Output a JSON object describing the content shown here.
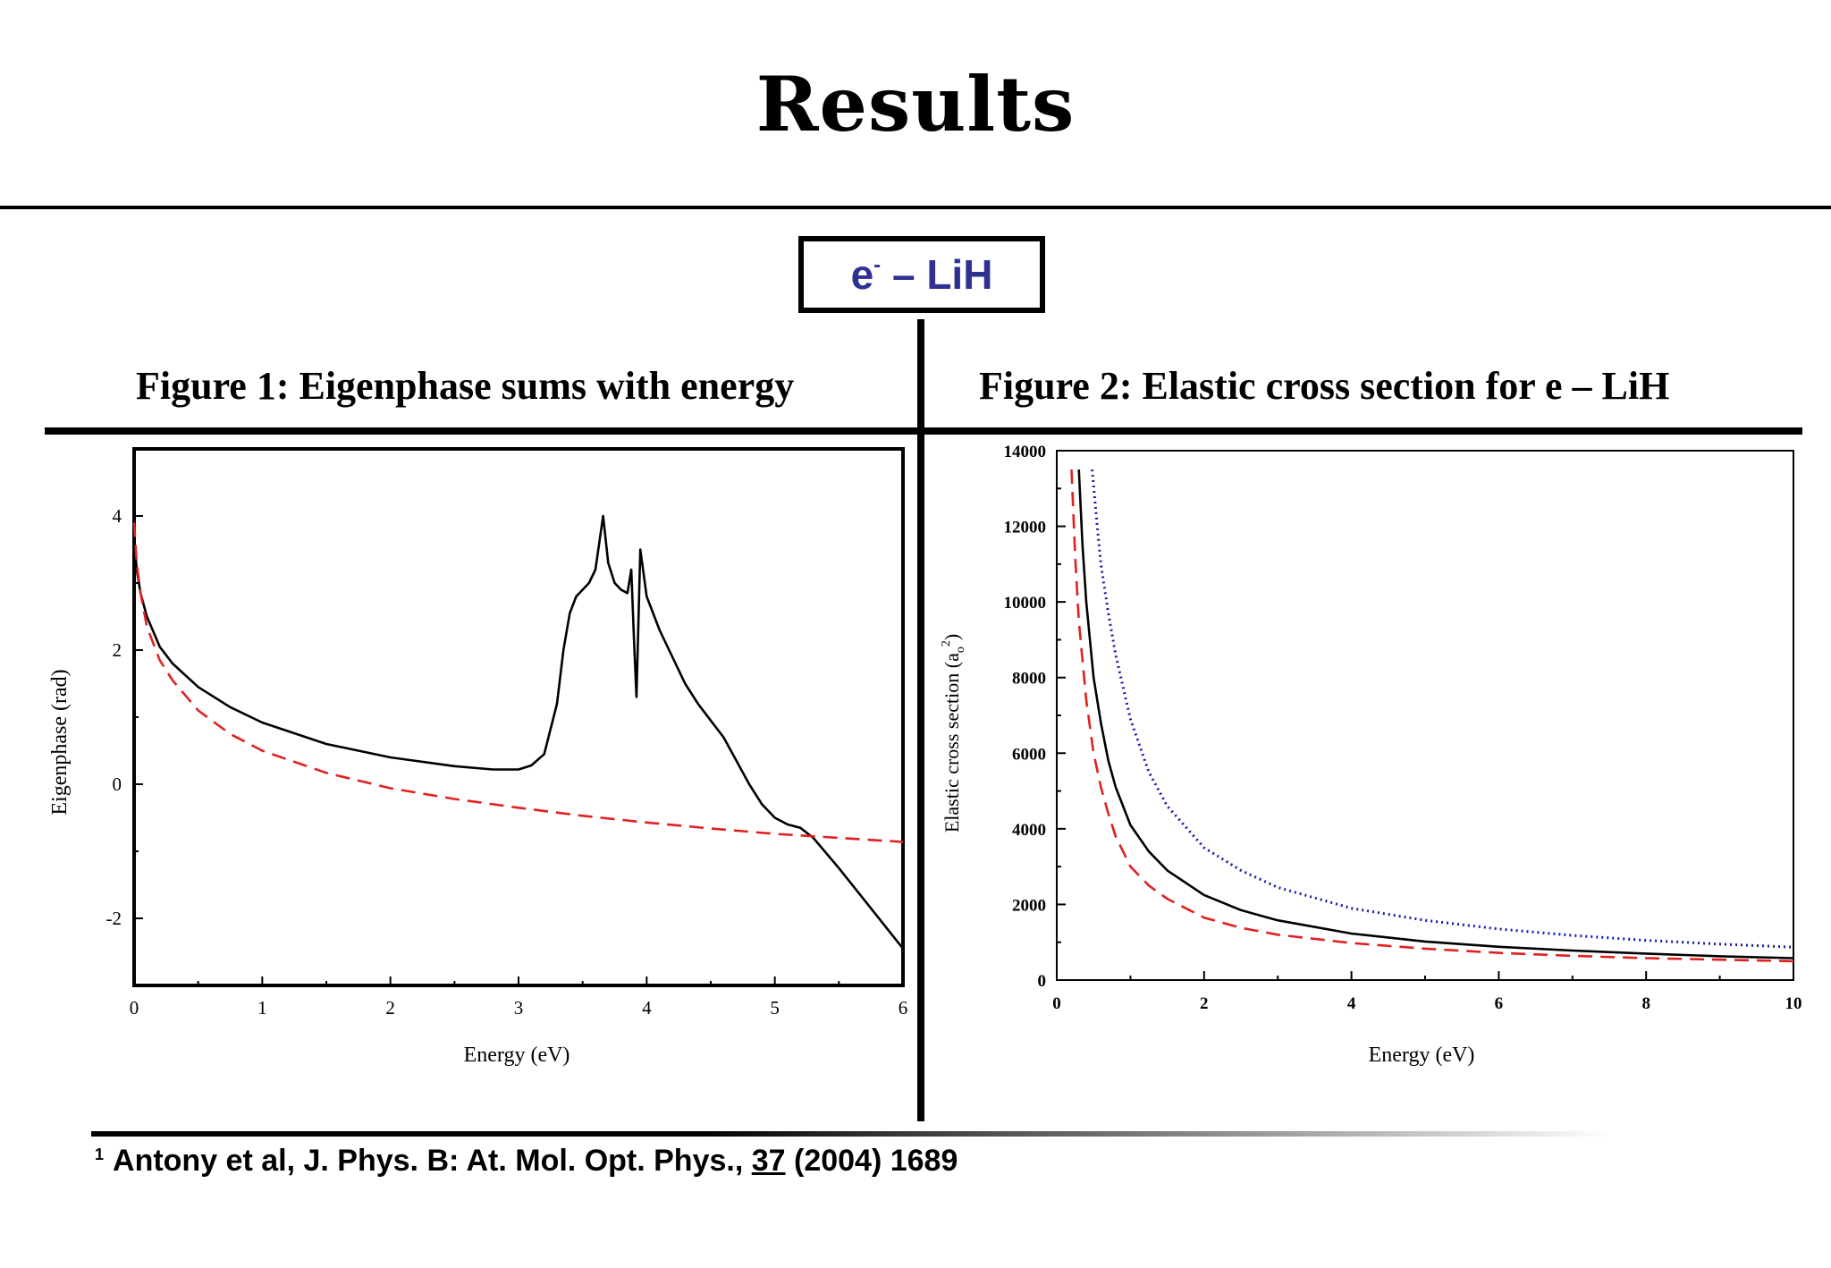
{
  "slide": {
    "title": "Results",
    "system_label_base": "e",
    "system_label_sup": "-",
    "system_label_rest": " – LiH"
  },
  "citation": {
    "sup": "1",
    "text_before": "Antony et al, J. Phys. B: At. Mol. Opt. Phys., ",
    "volume": "37",
    "text_after": " (2004) 1689"
  },
  "colors": {
    "accent": "#2e3192",
    "red_series": "#e02020",
    "blue_series": "#1a1aa8",
    "black_series": "#000000"
  },
  "chart_data": [
    {
      "type": "line",
      "title": "Figure 1: Eigenphase sums with energy",
      "xlabel": "Energy (eV)",
      "ylabel": "Eigenphase (rad)",
      "xlim": [
        0,
        6
      ],
      "ylim": [
        -3,
        5
      ],
      "xticks": [
        0,
        1,
        2,
        3,
        4,
        5,
        6
      ],
      "yticks": [
        -2,
        0,
        2,
        4
      ],
      "grid": false,
      "series": [
        {
          "style": "solid",
          "color": "#000000",
          "x": [
            0,
            0.02,
            0.05,
            0.1,
            0.2,
            0.3,
            0.5,
            0.75,
            1.0,
            1.5,
            2.0,
            2.5,
            2.8,
            3.0,
            3.1,
            3.2,
            3.3,
            3.35,
            3.4,
            3.45,
            3.5,
            3.55,
            3.6,
            3.63,
            3.66,
            3.7,
            3.75,
            3.8,
            3.85,
            3.88,
            3.9,
            3.92,
            3.95,
            4.0,
            4.1,
            4.2,
            4.3,
            4.4,
            4.5,
            4.6,
            4.7,
            4.8,
            4.9,
            5.0,
            5.1,
            5.2,
            5.3,
            5.5,
            5.75,
            6.0
          ],
          "y": [
            3.7,
            3.2,
            2.85,
            2.5,
            2.05,
            1.8,
            1.45,
            1.15,
            0.92,
            0.6,
            0.4,
            0.27,
            0.22,
            0.22,
            0.28,
            0.45,
            1.2,
            2.0,
            2.55,
            2.8,
            2.9,
            3.0,
            3.2,
            3.6,
            4.0,
            3.3,
            3.0,
            2.9,
            2.85,
            3.2,
            2.2,
            1.3,
            3.5,
            2.8,
            2.3,
            1.9,
            1.5,
            1.2,
            0.95,
            0.7,
            0.35,
            0.0,
            -0.3,
            -0.5,
            -0.6,
            -0.65,
            -0.8,
            -1.25,
            -1.85,
            -2.45
          ]
        },
        {
          "style": "dashed",
          "color": "#e02020",
          "x": [
            0,
            0.02,
            0.05,
            0.1,
            0.2,
            0.3,
            0.5,
            0.75,
            1.0,
            1.5,
            2.0,
            2.5,
            3.0,
            3.5,
            4.0,
            4.5,
            5.0,
            5.5,
            6.0
          ],
          "y": [
            3.9,
            3.3,
            2.85,
            2.35,
            1.85,
            1.55,
            1.1,
            0.75,
            0.5,
            0.17,
            -0.06,
            -0.22,
            -0.35,
            -0.47,
            -0.57,
            -0.66,
            -0.74,
            -0.8,
            -0.86
          ]
        }
      ]
    },
    {
      "type": "line",
      "title": "Figure 2: Elastic cross section for e – LiH",
      "xlabel": "Energy (eV)",
      "ylabel": "Elastic cross section (a",
      "ylabel_sub": "o",
      "ylabel_sup": "2",
      "ylabel_end": ")",
      "xlim": [
        0,
        10
      ],
      "ylim": [
        0,
        14000
      ],
      "xticks": [
        0,
        2,
        4,
        6,
        8,
        10
      ],
      "yticks": [
        0,
        2000,
        4000,
        6000,
        8000,
        10000,
        12000,
        14000
      ],
      "grid": false,
      "series": [
        {
          "style": "solid",
          "color": "#000000",
          "x": [
            0.3,
            0.35,
            0.4,
            0.5,
            0.6,
            0.7,
            0.8,
            1.0,
            1.25,
            1.5,
            2.0,
            2.5,
            3.0,
            4.0,
            5.0,
            6.0,
            7.0,
            8.0,
            9.0,
            10.0
          ],
          "y": [
            13500,
            11500,
            10000,
            8000,
            6800,
            5800,
            5100,
            4100,
            3400,
            2900,
            2250,
            1850,
            1580,
            1230,
            1020,
            880,
            780,
            700,
            630,
            580
          ]
        },
        {
          "style": "dashed",
          "color": "#e02020",
          "x": [
            0.2,
            0.25,
            0.3,
            0.4,
            0.5,
            0.6,
            0.7,
            0.8,
            1.0,
            1.25,
            1.5,
            2.0,
            2.5,
            3.0,
            4.0,
            5.0,
            6.0,
            7.0,
            8.0,
            9.0,
            10.0
          ],
          "y": [
            13500,
            11200,
            9500,
            7400,
            6000,
            5100,
            4400,
            3800,
            3000,
            2500,
            2150,
            1650,
            1380,
            1200,
            980,
            830,
            720,
            640,
            580,
            540,
            500
          ]
        },
        {
          "style": "dotted",
          "color": "#1a1aa8",
          "x": [
            0.48,
            0.55,
            0.6,
            0.7,
            0.8,
            1.0,
            1.25,
            1.5,
            2.0,
            2.5,
            3.0,
            4.0,
            5.0,
            6.0,
            7.0,
            8.0,
            9.0,
            10.0
          ],
          "y": [
            13500,
            12000,
            11000,
            9700,
            8600,
            6900,
            5500,
            4600,
            3500,
            2900,
            2450,
            1900,
            1580,
            1350,
            1180,
            1050,
            950,
            870
          ]
        }
      ]
    }
  ]
}
